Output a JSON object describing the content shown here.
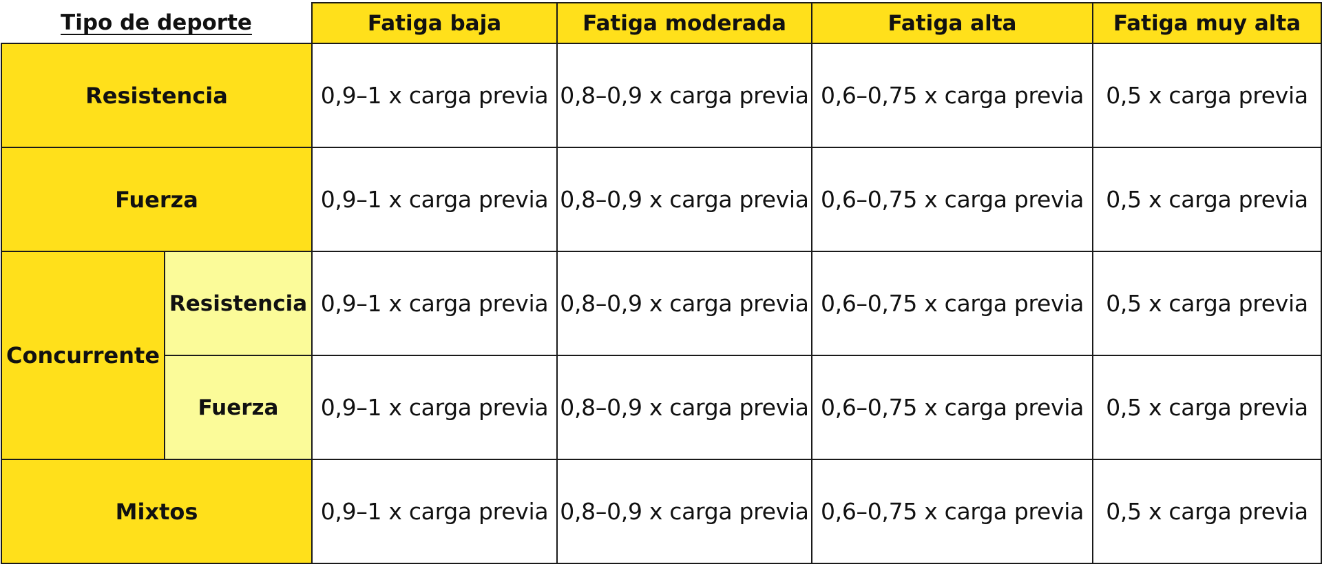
{
  "table": {
    "corner_header": "Tipo de deporte",
    "column_headers": [
      "Fatiga baja",
      "Fatiga moderada",
      "Fatiga alta",
      "Fatiga muy alta"
    ],
    "rows": [
      {
        "sport": "Resistencia",
        "subsport": "",
        "values": [
          "0,9–1 x carga previa",
          "0,8–0,9 x carga previa",
          "0,6–0,75 x carga previa",
          "0,5 x carga previa"
        ]
      },
      {
        "sport": "Fuerza",
        "subsport": "",
        "values": [
          "0,9–1 x carga previa",
          "0,8–0,9 x carga previa",
          "0,6–0,75 x carga previa",
          "0,5 x carga previa"
        ]
      },
      {
        "sport": "Concurrente",
        "subsport": "Resistencia",
        "values": [
          "0,9–1 x carga previa",
          "0,8–0,9 x carga previa",
          "0,6–0,75 x carga previa",
          "0,5 x carga previa"
        ]
      },
      {
        "sport": "Concurrente",
        "subsport": "Fuerza",
        "values": [
          "0,9–1 x carga previa",
          "0,8–0,9 x carga previa",
          "0,6–0,75 x carga previa",
          "0,5 x carga previa"
        ]
      },
      {
        "sport": "Mixtos",
        "subsport": "",
        "values": [
          "0,9–1 x carga previa",
          "0,8–0,9 x carga previa",
          "0,6–0,75 x carga previa",
          "0,5 x carga previa"
        ]
      }
    ],
    "colors": {
      "header_fill": "#FFE01B",
      "subcategory_fill": "#FBFB99",
      "border": "#1a1a1a"
    }
  }
}
